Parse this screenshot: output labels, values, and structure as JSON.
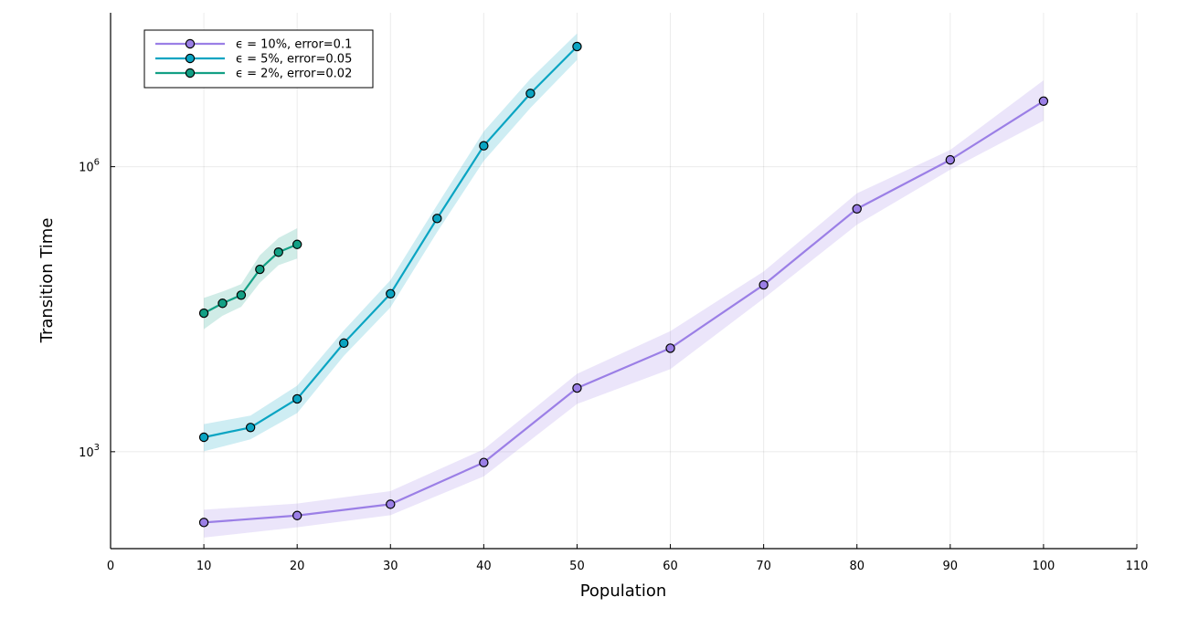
{
  "chart_data": {
    "type": "line",
    "title": "",
    "xlabel": "Population",
    "ylabel": "Transition Time",
    "x_ticks": [
      0,
      10,
      20,
      30,
      40,
      50,
      60,
      70,
      80,
      90,
      100,
      110
    ],
    "y_ticks": [
      {
        "value": 1000,
        "base": "10",
        "exp": "3"
      },
      {
        "value": 1000000,
        "base": "10",
        "exp": "6"
      }
    ],
    "x_range": [
      0,
      110
    ],
    "y_range_log10": [
      1.98,
      7.62
    ],
    "y_scale": "log",
    "grid": true,
    "legend_position": "top-left",
    "series": [
      {
        "name": "ϵ = 10%, error=0.1",
        "color": "#9b7fe6",
        "points": [
          {
            "x": 10,
            "y": 180,
            "lo": 125,
            "hi": 245
          },
          {
            "x": 20,
            "y": 213,
            "lo": 160,
            "hi": 285
          },
          {
            "x": 30,
            "y": 280,
            "lo": 215,
            "hi": 385
          },
          {
            "x": 40,
            "y": 770,
            "lo": 550,
            "hi": 1060
          },
          {
            "x": 50,
            "y": 4680,
            "lo": 3180,
            "hi": 6600
          },
          {
            "x": 60,
            "y": 12300,
            "lo": 7400,
            "hi": 18600
          },
          {
            "x": 70,
            "y": 57000,
            "lo": 41000,
            "hi": 79000
          },
          {
            "x": 80,
            "y": 360000,
            "lo": 245000,
            "hi": 525000
          },
          {
            "x": 90,
            "y": 1180000,
            "lo": 930000,
            "hi": 1500000
          },
          {
            "x": 100,
            "y": 4900000,
            "lo": 3050000,
            "hi": 8100000
          }
        ]
      },
      {
        "name": "ϵ = 5%, error=0.05",
        "color": "#0aa4c2",
        "points": [
          {
            "x": 10,
            "y": 1420,
            "lo": 1010,
            "hi": 1950
          },
          {
            "x": 15,
            "y": 1800,
            "lo": 1350,
            "hi": 2400
          },
          {
            "x": 20,
            "y": 3600,
            "lo": 2550,
            "hi": 4950
          },
          {
            "x": 25,
            "y": 13900,
            "lo": 10200,
            "hi": 18900
          },
          {
            "x": 30,
            "y": 46000,
            "lo": 33000,
            "hi": 64000
          },
          {
            "x": 35,
            "y": 285000,
            "lo": 205000,
            "hi": 395000
          },
          {
            "x": 40,
            "y": 1660000,
            "lo": 1150000,
            "hi": 2350000
          },
          {
            "x": 45,
            "y": 5900000,
            "lo": 4150000,
            "hi": 8400000
          },
          {
            "x": 50,
            "y": 18400000,
            "lo": 13300000,
            "hi": 25300000
          }
        ]
      },
      {
        "name": "ϵ = 2%, error=0.02",
        "color": "#13a085",
        "points": [
          {
            "x": 10,
            "y": 28700,
            "lo": 19500,
            "hi": 41500
          },
          {
            "x": 12,
            "y": 36500,
            "lo": 27000,
            "hi": 48500
          },
          {
            "x": 14,
            "y": 44500,
            "lo": 33500,
            "hi": 58000
          },
          {
            "x": 16,
            "y": 83000,
            "lo": 60000,
            "hi": 117000
          },
          {
            "x": 18,
            "y": 126000,
            "lo": 92000,
            "hi": 178000
          },
          {
            "x": 20,
            "y": 152000,
            "lo": 108000,
            "hi": 225000
          }
        ]
      }
    ]
  }
}
